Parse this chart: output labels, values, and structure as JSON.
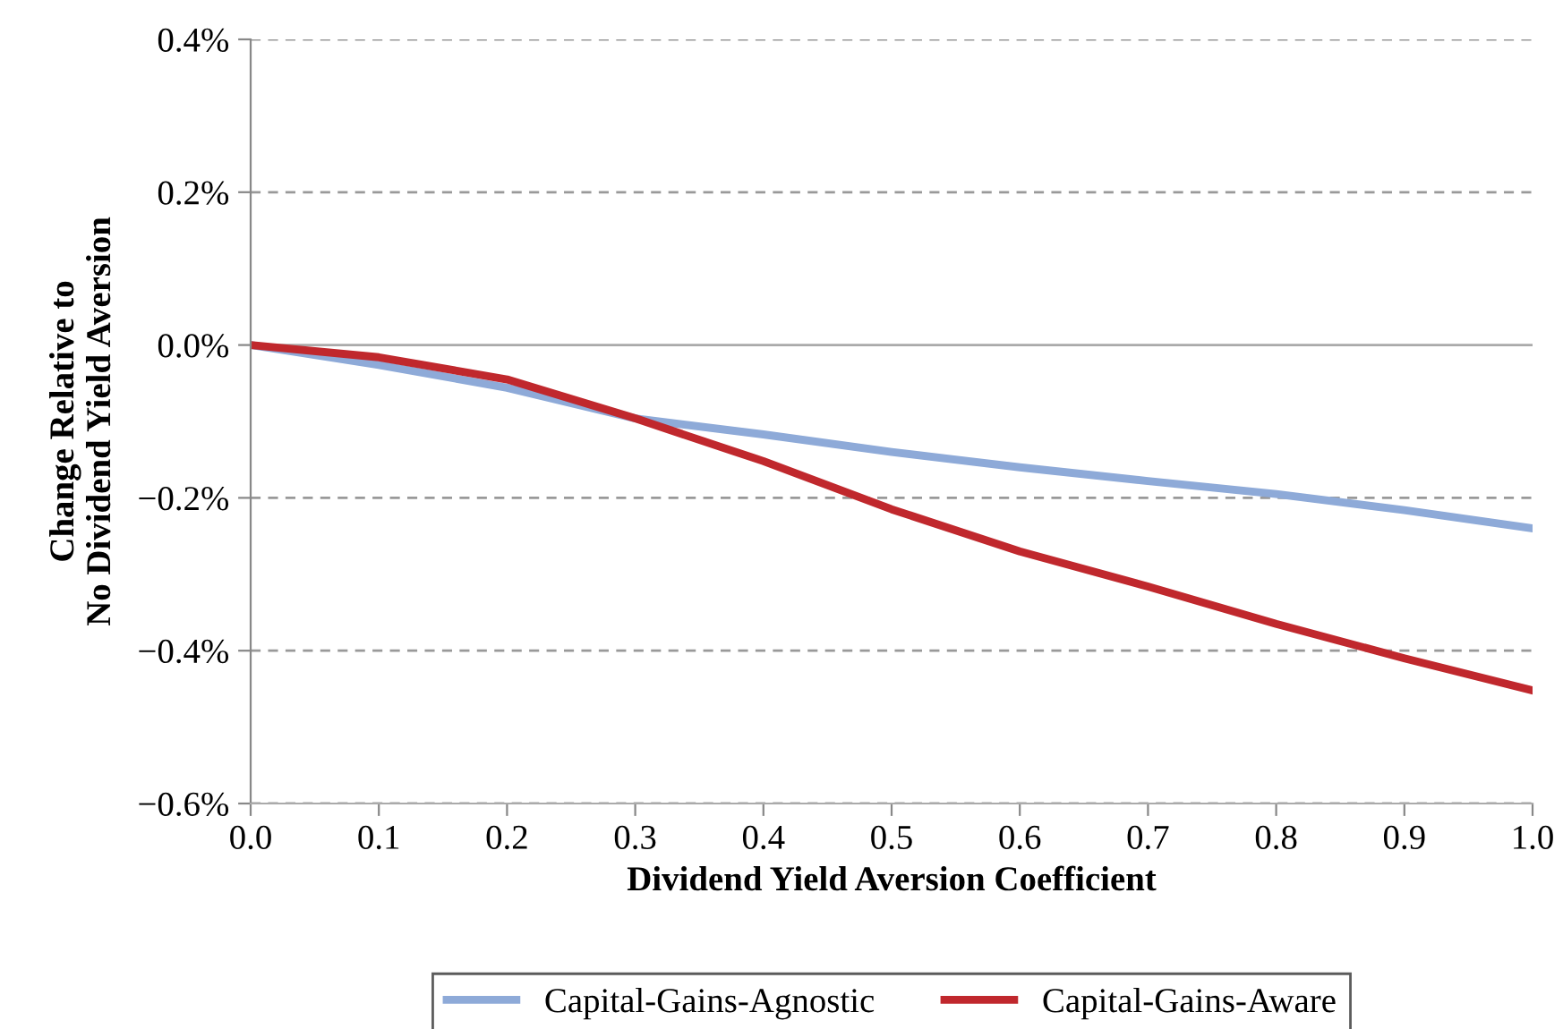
{
  "chart_data": {
    "type": "line",
    "xlabel": "Dividend Yield Aversion Coefficient",
    "ylabel": "Change Relative to\nNo Dividend Yield Aversion",
    "x": [
      0.0,
      0.1,
      0.2,
      0.3,
      0.4,
      0.5,
      0.6,
      0.7,
      0.8,
      0.9,
      1.0
    ],
    "series": [
      {
        "name": "Capital-Gains-Agnostic",
        "color": "#8eaad8",
        "values": [
          0.0,
          -0.026,
          -0.056,
          -0.096,
          -0.117,
          -0.14,
          -0.16,
          -0.178,
          -0.195,
          -0.216,
          -0.24
        ]
      },
      {
        "name": "Capital-Gains-Aware",
        "color": "#c0282d",
        "values": [
          0.0,
          -0.016,
          -0.045,
          -0.096,
          -0.152,
          -0.215,
          -0.27,
          -0.316,
          -0.365,
          -0.41,
          -0.452
        ]
      }
    ],
    "xlim": [
      0.0,
      1.0
    ],
    "xticks": [
      {
        "value": 0.0,
        "label": "0.0"
      },
      {
        "value": 0.1,
        "label": "0.1"
      },
      {
        "value": 0.2,
        "label": "0.2"
      },
      {
        "value": 0.3,
        "label": "0.3"
      },
      {
        "value": 0.4,
        "label": "0.4"
      },
      {
        "value": 0.5,
        "label": "0.5"
      },
      {
        "value": 0.6,
        "label": "0.6"
      },
      {
        "value": 0.7,
        "label": "0.7"
      },
      {
        "value": 0.8,
        "label": "0.8"
      },
      {
        "value": 0.9,
        "label": "0.9"
      },
      {
        "value": 1.0,
        "label": "1.0"
      }
    ],
    "ylim": [
      -0.6,
      0.4
    ],
    "yticks": [
      {
        "value": 0.4,
        "label": "0.4%"
      },
      {
        "value": 0.2,
        "label": "0.2%"
      },
      {
        "value": 0.0,
        "label": "0.0%"
      },
      {
        "value": -0.2,
        "label": "−0.2%"
      },
      {
        "value": -0.4,
        "label": "−0.4%"
      },
      {
        "value": -0.6,
        "label": "−0.6%"
      }
    ],
    "grid": "y",
    "legend": "bottom",
    "marker": "none",
    "line_style": "solid"
  }
}
